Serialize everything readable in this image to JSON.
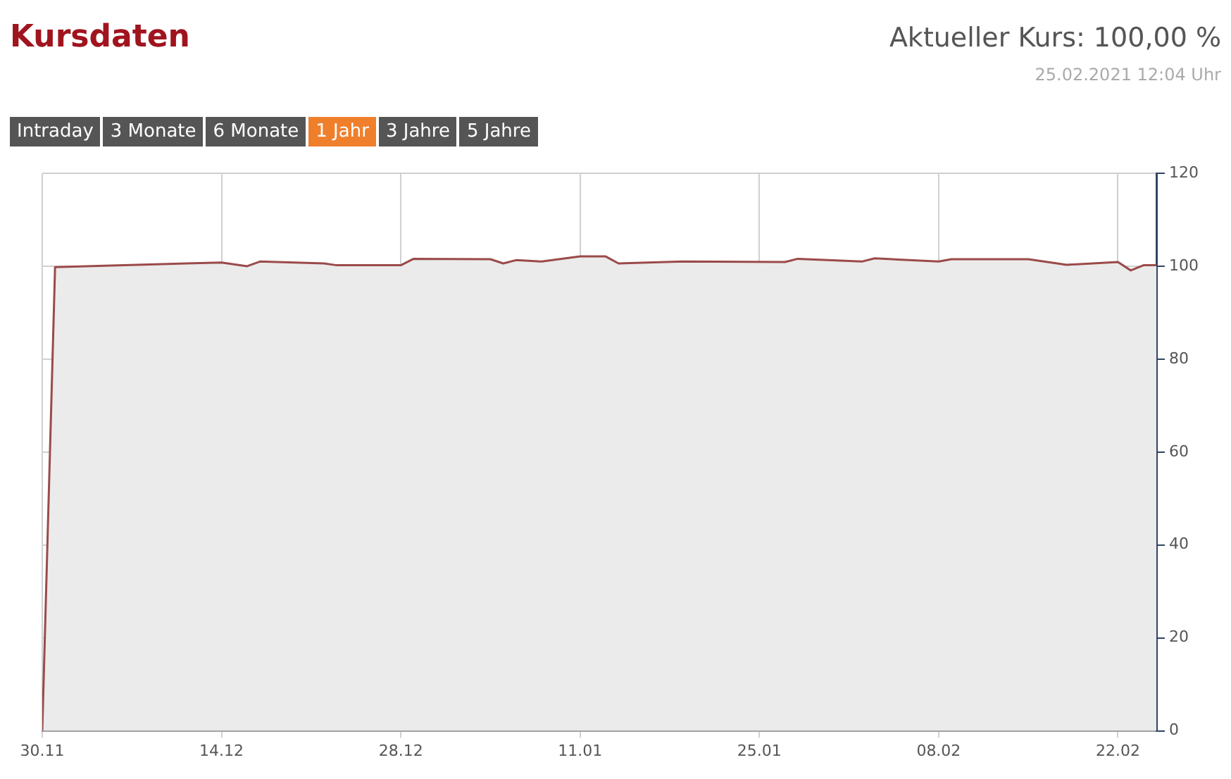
{
  "chart_data": {
    "type": "area",
    "title": "Kursdaten",
    "annotations": [
      "Aktueller Kurs: 100,00 %",
      "25.02.2021 12:04 Uhr",
      "Intraday",
      "3 Monate",
      "6 Monate",
      "1 Jahr",
      "3 Jahre",
      "5 Jahre"
    ],
    "x": [
      "2020-11-30",
      "2020-12-01",
      "2020-12-14",
      "2020-12-16",
      "2020-12-17",
      "2020-12-22",
      "2020-12-23",
      "2020-12-28",
      "2020-12-29",
      "2021-01-04",
      "2021-01-05",
      "2021-01-06",
      "2021-01-08",
      "2021-01-11",
      "2021-01-13",
      "2021-01-14",
      "2021-01-19",
      "2021-01-27",
      "2021-01-28",
      "2021-02-02",
      "2021-02-03",
      "2021-02-08",
      "2021-02-09",
      "2021-02-15",
      "2021-02-18",
      "2021-02-22",
      "2021-02-23",
      "2021-02-24",
      "2021-02-25"
    ],
    "series": [
      {
        "color": "#9b4a4a",
        "values": [
          0,
          99.8,
          100.8,
          100,
          101,
          100.6,
          100.2,
          100.2,
          101.6,
          101.5,
          100.6,
          101.3,
          101,
          102.1,
          102.1,
          100.6,
          101,
          100.9,
          101.6,
          101,
          101.7,
          101,
          101.5,
          101.5,
          100.3,
          100.9,
          99.1,
          100.2,
          100.2
        ]
      }
    ],
    "xlim": [
      "2020-11-30",
      "2021-02-25"
    ],
    "xticks": [
      {
        "value": "2020-11-30",
        "label": "30.11"
      },
      {
        "value": "2020-12-14",
        "label": "14.12"
      },
      {
        "value": "2020-12-28",
        "label": "28.12"
      },
      {
        "value": "2021-01-11",
        "label": "11.01"
      },
      {
        "value": "2021-01-25",
        "label": "25.01"
      },
      {
        "value": "2021-02-08",
        "label": "08.02"
      },
      {
        "value": "2021-02-22",
        "label": "22.02"
      }
    ],
    "ylim": [
      0,
      120
    ],
    "yticks": [
      0,
      20,
      40,
      60,
      80,
      100,
      120
    ],
    "grid": true,
    "legend": false
  }
}
